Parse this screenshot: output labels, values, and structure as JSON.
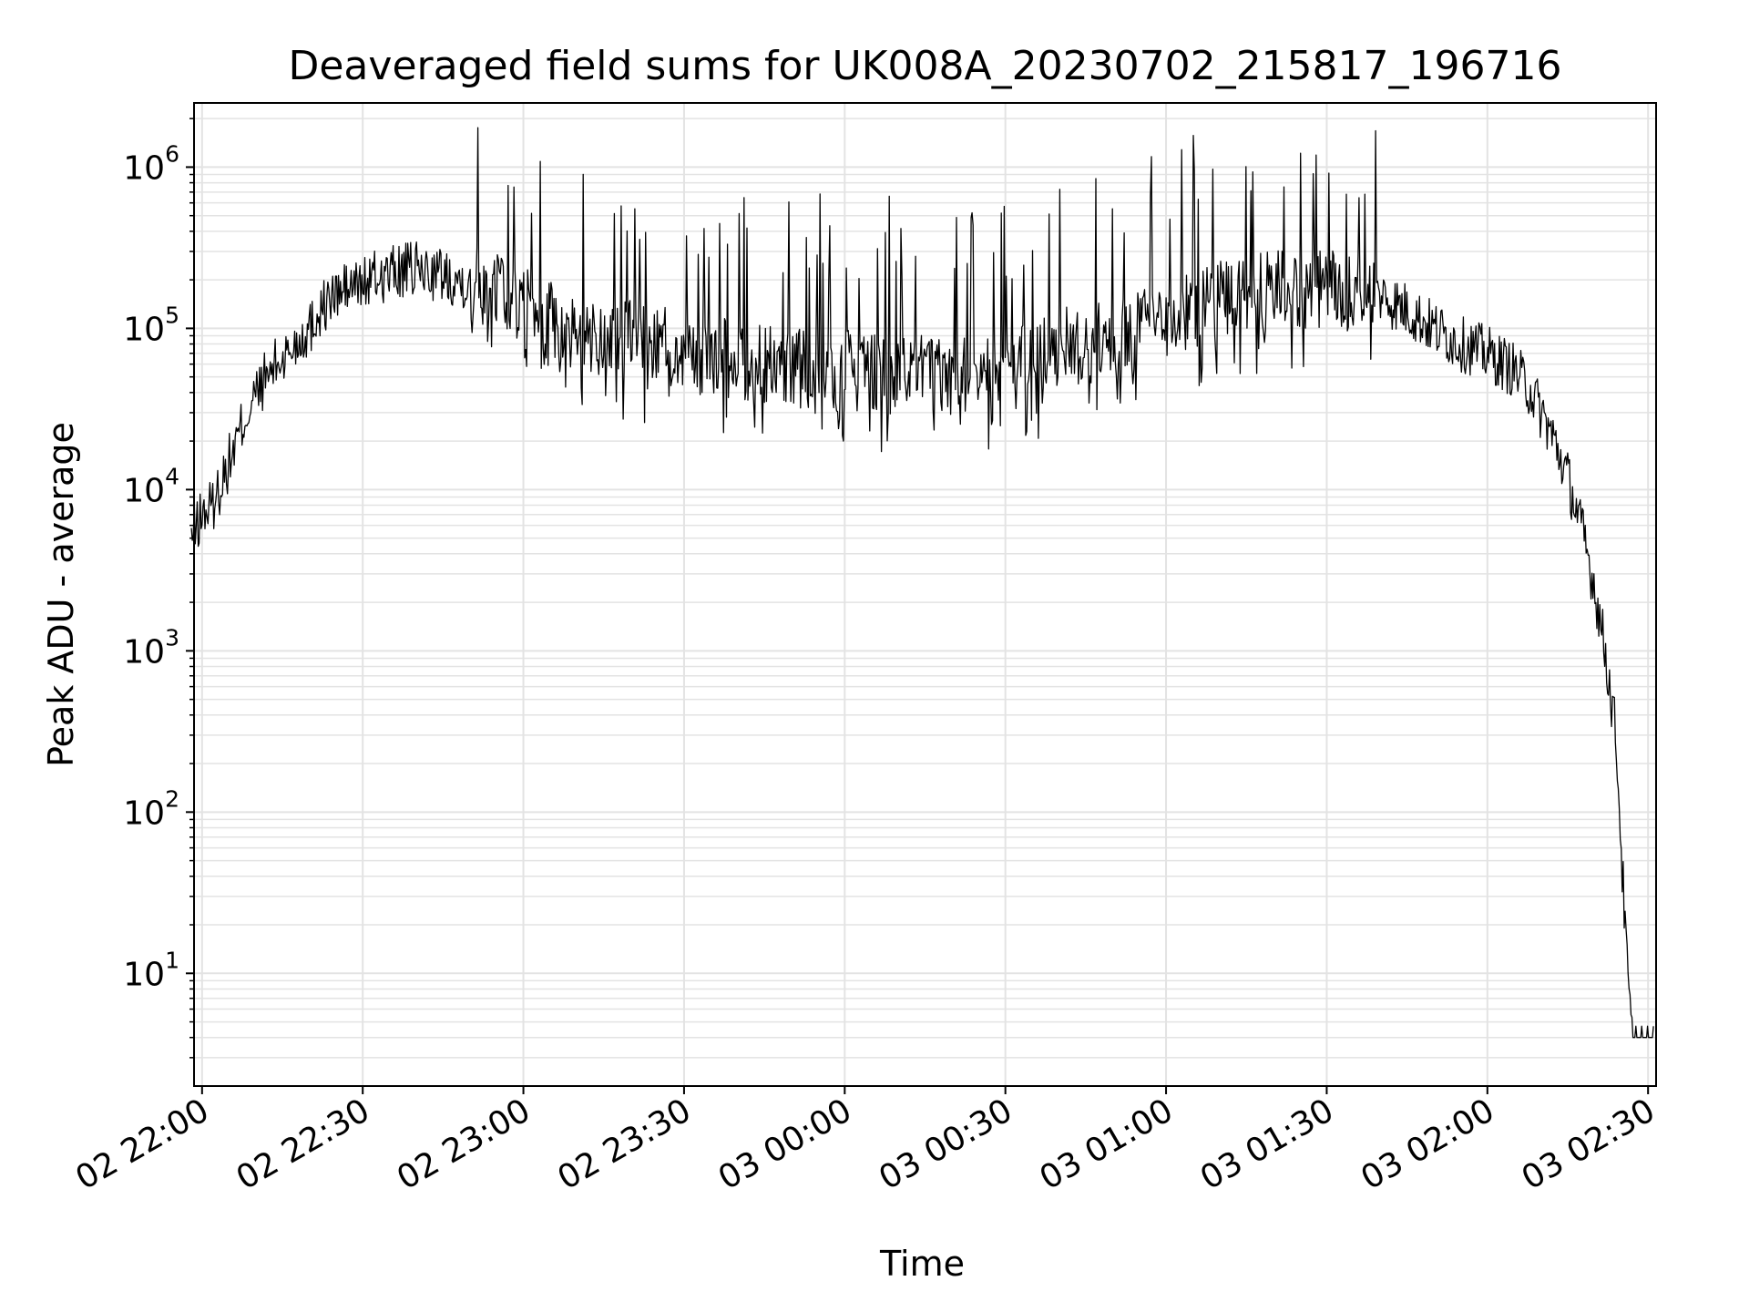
{
  "chart_data": {
    "type": "line",
    "title": "Deaveraged field sums for UK008A_20230702_215817_196716",
    "xlabel": "Time",
    "ylabel": "Peak ADU - average",
    "yscale": "log",
    "ylim": [
      2,
      2500000
    ],
    "xlim": [
      "2023-07-02 21:58:30",
      "2023-07-03 02:31:30"
    ],
    "x_ticks": [
      {
        "time": "2023-07-02 22:00",
        "label": "02 22:00"
      },
      {
        "time": "2023-07-02 22:30",
        "label": "02 22:30"
      },
      {
        "time": "2023-07-02 23:00",
        "label": "02 23:00"
      },
      {
        "time": "2023-07-02 23:30",
        "label": "02 23:30"
      },
      {
        "time": "2023-07-03 00:00",
        "label": "03 00:00"
      },
      {
        "time": "2023-07-03 00:30",
        "label": "03 00:30"
      },
      {
        "time": "2023-07-03 01:00",
        "label": "03 01:00"
      },
      {
        "time": "2023-07-03 01:30",
        "label": "03 01:30"
      },
      {
        "time": "2023-07-03 02:00",
        "label": "03 02:00"
      },
      {
        "time": "2023-07-03 02:30",
        "label": "03 02:30"
      }
    ],
    "y_ticks": [
      {
        "value": 10,
        "base": "10",
        "exp": "1"
      },
      {
        "value": 100,
        "base": "10",
        "exp": "2"
      },
      {
        "value": 1000,
        "base": "10",
        "exp": "3"
      },
      {
        "value": 10000,
        "base": "10",
        "exp": "4"
      },
      {
        "value": 100000,
        "base": "10",
        "exp": "5"
      },
      {
        "value": 1000000,
        "base": "10",
        "exp": "6"
      }
    ],
    "grid": true,
    "line_color": "#000000",
    "grid_color": "#e3e3e3",
    "series": [
      {
        "x": [
          "2023-07-02 21:58",
          "2023-07-02 22:00",
          "2023-07-02 22:02",
          "2023-07-02 22:04",
          "2023-07-02 22:06",
          "2023-07-02 22:08",
          "2023-07-02 22:10",
          "2023-07-02 22:12",
          "2023-07-02 22:14",
          "2023-07-02 22:16",
          "2023-07-02 22:18",
          "2023-07-02 22:20",
          "2023-07-02 22:22",
          "2023-07-02 22:24",
          "2023-07-02 22:26",
          "2023-07-02 22:28",
          "2023-07-02 22:30",
          "2023-07-02 22:35",
          "2023-07-02 22:40",
          "2023-07-02 22:45",
          "2023-07-02 22:50",
          "2023-07-02 22:55",
          "2023-07-02 23:00",
          "2023-07-02 23:10",
          "2023-07-02 23:20",
          "2023-07-02 23:30",
          "2023-07-02 23:40",
          "2023-07-02 23:50",
          "2023-07-03 00:00",
          "2023-07-03 00:10",
          "2023-07-03 00:20",
          "2023-07-03 00:30",
          "2023-07-03 00:40",
          "2023-07-03 00:50",
          "2023-07-03 01:00",
          "2023-07-03 01:10",
          "2023-07-03 01:20",
          "2023-07-03 01:30",
          "2023-07-03 01:40",
          "2023-07-03 01:45",
          "2023-07-03 01:50",
          "2023-07-03 01:55",
          "2023-07-03 02:00",
          "2023-07-03 02:05",
          "2023-07-03 02:08",
          "2023-07-03 02:12",
          "2023-07-03 02:15",
          "2023-07-03 02:18",
          "2023-07-03 02:20",
          "2023-07-03 02:22",
          "2023-07-03 02:24",
          "2023-07-03 02:25",
          "2023-07-03 02:26",
          "2023-07-03 02:27",
          "2023-07-03 02:31"
        ],
        "y": [
          5000,
          7000,
          8000,
          12000,
          18000,
          28000,
          38000,
          50000,
          60000,
          70000,
          85000,
          100000,
          130000,
          150000,
          170000,
          180000,
          190000,
          220000,
          230000,
          215000,
          195000,
          170000,
          140000,
          95000,
          85000,
          72000,
          65000,
          56000,
          55000,
          52000,
          50000,
          52000,
          75000,
          85000,
          115000,
          150000,
          170000,
          175000,
          160000,
          130000,
          100000,
          80000,
          70000,
          55000,
          42000,
          22000,
          12000,
          5000,
          2500,
          1000,
          300,
          60,
          12,
          4,
          4
        ]
      }
    ]
  }
}
